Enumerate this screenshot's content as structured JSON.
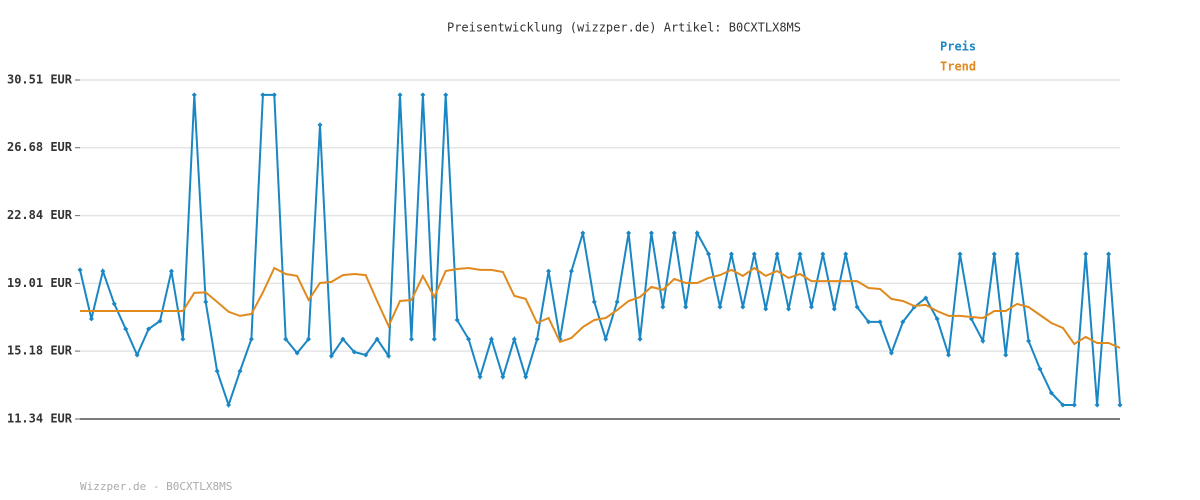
{
  "chart_data": {
    "type": "line",
    "title": "Preisentwicklung (wizzper.de) Artikel: B0CXTLX8MS",
    "footer": "Wizzper.de - B0CXTLX8MS",
    "legend": "top-right",
    "grid": true,
    "ylim": [
      11.34,
      30.51
    ],
    "yticks": [
      {
        "value": 11.34,
        "label": "11.34 EUR"
      },
      {
        "value": 15.18,
        "label": "15.18 EUR"
      },
      {
        "value": 19.01,
        "label": "19.01 EUR"
      },
      {
        "value": 22.84,
        "label": "22.84 EUR"
      },
      {
        "value": 26.68,
        "label": "26.68 EUR"
      },
      {
        "value": 30.51,
        "label": "30.51 EUR"
      }
    ],
    "series": [
      {
        "name": "Preis",
        "color": "#1a87c4",
        "markers": true,
        "values": [
          19.77,
          17.0,
          19.7,
          17.85,
          16.43,
          14.96,
          16.43,
          16.88,
          19.7,
          15.86,
          29.67,
          17.96,
          14.05,
          12.13,
          14.05,
          15.86,
          29.67,
          29.67,
          15.86,
          15.07,
          15.86,
          27.97,
          14.9,
          15.86,
          15.13,
          14.96,
          15.86,
          14.9,
          29.67,
          15.86,
          29.67,
          15.86,
          29.67,
          16.94,
          15.86,
          13.72,
          15.86,
          13.72,
          15.86,
          13.72,
          15.86,
          19.7,
          15.86,
          19.7,
          21.86,
          17.96,
          15.86,
          17.96,
          21.86,
          15.86,
          21.86,
          17.67,
          21.86,
          17.67,
          21.86,
          20.67,
          17.67,
          20.67,
          17.67,
          20.67,
          17.56,
          20.67,
          17.56,
          20.67,
          17.67,
          20.67,
          17.56,
          20.67,
          17.67,
          16.83,
          16.83,
          15.07,
          16.83,
          17.67,
          18.18,
          17.0,
          14.96,
          20.67,
          17.0,
          15.75,
          20.67,
          14.96,
          20.67,
          15.75,
          14.17,
          12.81,
          12.13,
          12.13,
          20.67,
          12.13,
          20.67,
          12.13
        ]
      },
      {
        "name": "Trend",
        "color": "#e08a1e",
        "markers": false,
        "values": [
          17.45,
          17.45,
          17.45,
          17.45,
          17.45,
          17.45,
          17.45,
          17.45,
          17.45,
          17.45,
          18.47,
          18.5,
          17.96,
          17.4,
          17.17,
          17.28,
          18.5,
          19.88,
          19.54,
          19.43,
          18.07,
          19.03,
          19.09,
          19.48,
          19.54,
          19.48,
          18.01,
          16.6,
          18.01,
          18.07,
          19.43,
          18.24,
          19.71,
          19.82,
          19.88,
          19.77,
          19.77,
          19.65,
          18.3,
          18.13,
          16.77,
          17.05,
          15.7,
          15.92,
          16.54,
          16.94,
          17.05,
          17.5,
          18.01,
          18.24,
          18.81,
          18.64,
          19.26,
          19.03,
          19.03,
          19.32,
          19.48,
          19.77,
          19.43,
          19.88,
          19.43,
          19.71,
          19.32,
          19.54,
          19.14,
          19.14,
          19.14,
          19.14,
          19.14,
          18.75,
          18.69,
          18.13,
          18.01,
          17.73,
          17.79,
          17.45,
          17.17,
          17.17,
          17.11,
          17.05,
          17.45,
          17.45,
          17.85,
          17.67,
          17.22,
          16.77,
          16.49,
          15.58,
          15.98,
          15.64,
          15.64,
          15.36
        ]
      }
    ]
  }
}
